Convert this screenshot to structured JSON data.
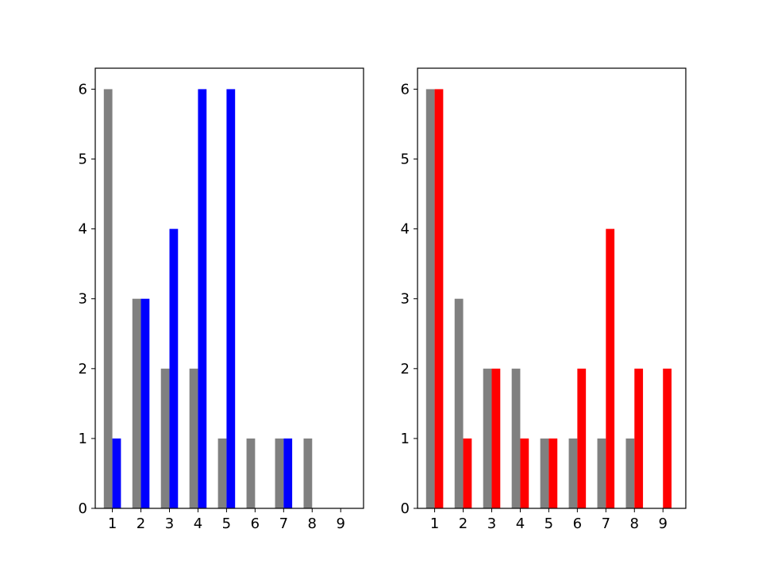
{
  "chart_data": [
    {
      "type": "bar",
      "title": "",
      "xlabel": "",
      "ylabel": "",
      "categories": [
        "1",
        "2",
        "3",
        "4",
        "5",
        "6",
        "7",
        "8",
        "9"
      ],
      "x": [
        1,
        2,
        3,
        4,
        5,
        6,
        7,
        8,
        9
      ],
      "xlim": [
        0.4,
        9.8
      ],
      "ylim": [
        0,
        6.3
      ],
      "yticks": [
        0,
        1,
        2,
        3,
        4,
        5,
        6
      ],
      "grid": false,
      "series": [
        {
          "color": "#808080",
          "offset": -0.15,
          "values": [
            6,
            3,
            2,
            2,
            1,
            1,
            1,
            1,
            0
          ]
        },
        {
          "color": "#0000ff",
          "offset": 0.15,
          "values": [
            1,
            3,
            4,
            6,
            6,
            0,
            1,
            0,
            0
          ]
        }
      ]
    },
    {
      "type": "bar",
      "title": "",
      "xlabel": "",
      "ylabel": "",
      "categories": [
        "1",
        "2",
        "3",
        "4",
        "5",
        "6",
        "7",
        "8",
        "9"
      ],
      "x": [
        1,
        2,
        3,
        4,
        5,
        6,
        7,
        8,
        9
      ],
      "xlim": [
        0.4,
        9.8
      ],
      "ylim": [
        0,
        6.3
      ],
      "yticks": [
        0,
        1,
        2,
        3,
        4,
        5,
        6
      ],
      "grid": false,
      "series": [
        {
          "color": "#808080",
          "offset": -0.15,
          "values": [
            6,
            3,
            2,
            2,
            1,
            1,
            1,
            1,
            0
          ]
        },
        {
          "color": "#ff0000",
          "offset": 0.15,
          "values": [
            6,
            1,
            2,
            1,
            1,
            2,
            4,
            2,
            2
          ]
        }
      ]
    }
  ]
}
